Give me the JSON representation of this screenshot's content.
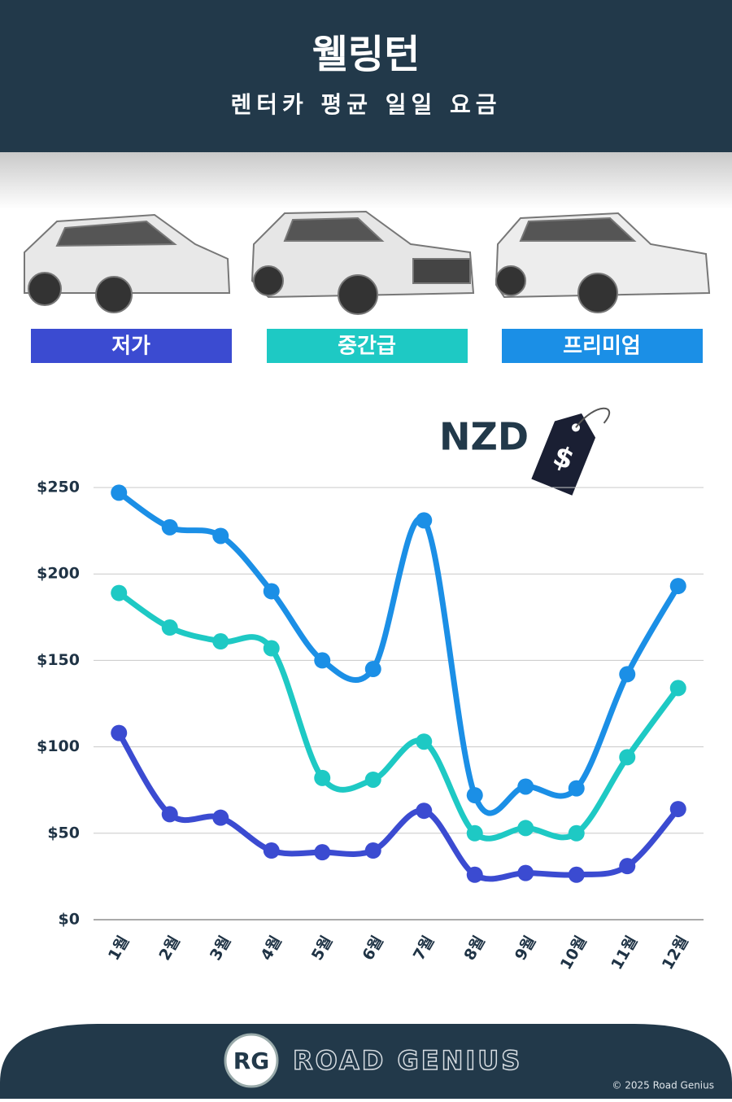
{
  "header": {
    "title": "웰링턴",
    "subtitle": "렌터카 평균 일일 요금"
  },
  "chart_data": {
    "type": "line",
    "currency": "NZD",
    "currency_symbol": "$",
    "categories": [
      "1월",
      "2월",
      "3월",
      "4월",
      "5월",
      "6월",
      "7월",
      "8월",
      "9월",
      "10월",
      "11월",
      "12월"
    ],
    "series": [
      {
        "name": "저가",
        "color": "#3b4bd1",
        "values": [
          108,
          61,
          59,
          40,
          39,
          40,
          63,
          26,
          27,
          26,
          31,
          64
        ]
      },
      {
        "name": "중간급",
        "color": "#1ec9c4",
        "values": [
          189,
          169,
          161,
          157,
          82,
          81,
          103,
          50,
          53,
          50,
          94,
          134
        ]
      },
      {
        "name": "프리미엄",
        "color": "#1b8fe6",
        "values": [
          247,
          227,
          222,
          190,
          150,
          145,
          231,
          72,
          77,
          76,
          142,
          193
        ]
      }
    ],
    "ylim": [
      0,
      250
    ],
    "yticks": [
      {
        "value": 0,
        "label": "$0"
      },
      {
        "value": 50,
        "label": "$50"
      },
      {
        "value": 100,
        "label": "$100"
      },
      {
        "value": 150,
        "label": "$150"
      },
      {
        "value": 200,
        "label": "$200"
      },
      {
        "value": 250,
        "label": "$250"
      }
    ],
    "grid": true
  },
  "footer": {
    "logo_mark": "RG",
    "brand": "ROAD GENIUS",
    "copyright": "© 2025 Road Genius"
  }
}
